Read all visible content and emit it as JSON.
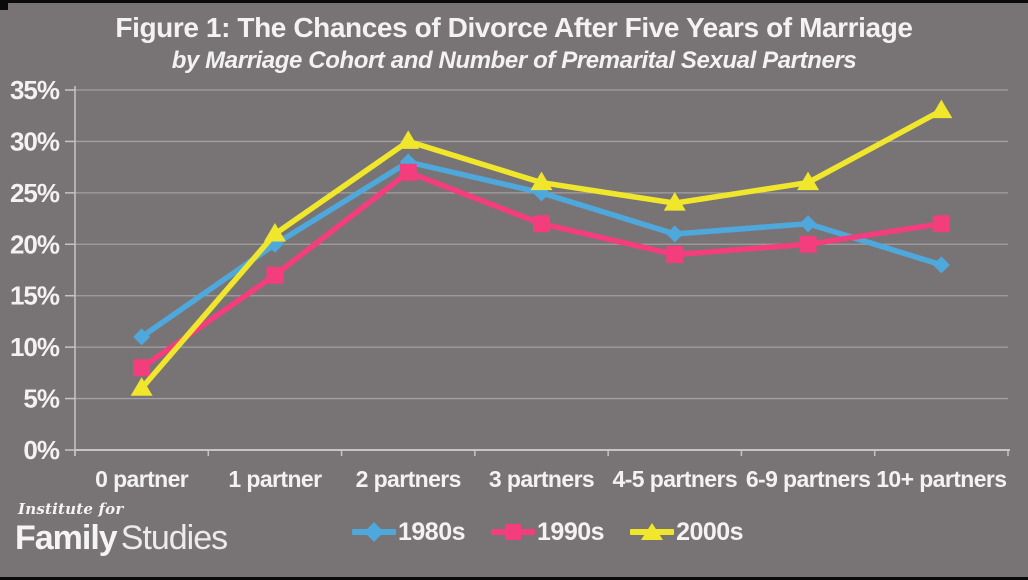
{
  "chart_data": {
    "type": "line",
    "title": "Figure 1: The Chances of Divorce After Five Years of Marriage",
    "subtitle": "by Marriage Cohort and Number of Premarital Sexual Partners",
    "categories": [
      "0 partner",
      "1 partner",
      "2 partners",
      "3 partners",
      "4-5 partners",
      "6-9 partners",
      "10+ partners"
    ],
    "series": [
      {
        "name": "1980s",
        "marker": "diamond",
        "color": "#4fa8dc",
        "values": [
          11,
          20,
          28,
          25,
          21,
          22,
          18
        ]
      },
      {
        "name": "1990s",
        "marker": "square",
        "color": "#f43d7d",
        "values": [
          8,
          17,
          27,
          22,
          19,
          20,
          22
        ]
      },
      {
        "name": "2000s",
        "marker": "triangle",
        "color": "#f0e72c",
        "values": [
          6,
          21,
          30,
          26,
          24,
          26,
          33
        ]
      }
    ],
    "ylim": [
      0,
      35
    ],
    "ytick_step": 5,
    "ytick_labels": [
      "0%",
      "5%",
      "10%",
      "15%",
      "20%",
      "25%",
      "30%",
      "35%"
    ],
    "grid": true,
    "legend_position": "bottom",
    "colors": {
      "background": "#787476",
      "text": "#f3f1f2",
      "gridline": "rgba(255,255,255,0.32)",
      "axis": "#c7c4c5"
    }
  },
  "footer": {
    "logo_line1": "Institute for",
    "logo_bold": "Family",
    "logo_light": "Studies"
  }
}
